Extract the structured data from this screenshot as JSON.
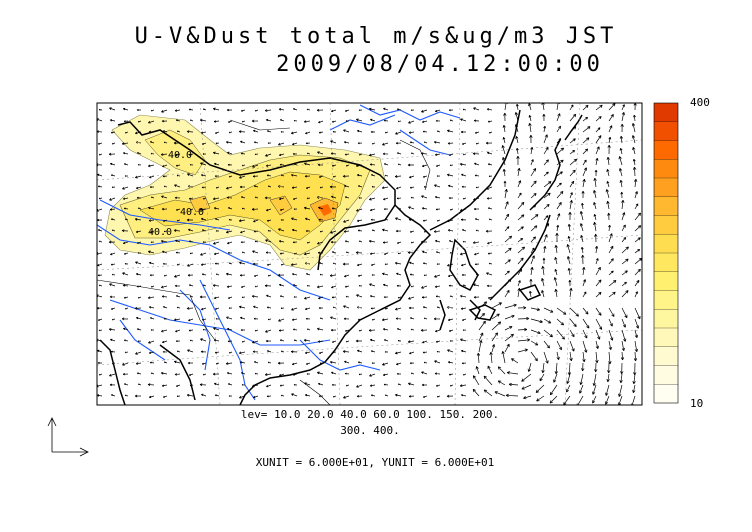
{
  "title": {
    "line1": "U-V&Dust total m/s&ug/m3 JST",
    "line2": "2009/08/04.12:00:00"
  },
  "contour_levels": {
    "line1": "lev= 10.0 20.0 40.0 60.0 100. 150. 200.",
    "line2": "300. 400."
  },
  "map_labels": [
    "40.0",
    "40.0",
    "40.0"
  ],
  "units": "XUNIT = 6.000E+01, YUNIT = 6.000E+01",
  "colorbar": {
    "max_label": "400",
    "min_label": "10",
    "colors": [
      "#e03a00",
      "#f05000",
      "#ff6a00",
      "#ff8a10",
      "#ffa020",
      "#ffb830",
      "#ffcc40",
      "#ffdd50",
      "#ffe860",
      "#fff070",
      "#fff488",
      "#fff6a0",
      "#fff8b8",
      "#fffad0",
      "#fffce2",
      "#fffef0"
    ]
  },
  "colors": {
    "river": "#1e5bff",
    "coast": "#000000",
    "dust_light": "#fff6b0",
    "dust_mid": "#ffe860",
    "dust_high": "#ff8a10"
  }
}
